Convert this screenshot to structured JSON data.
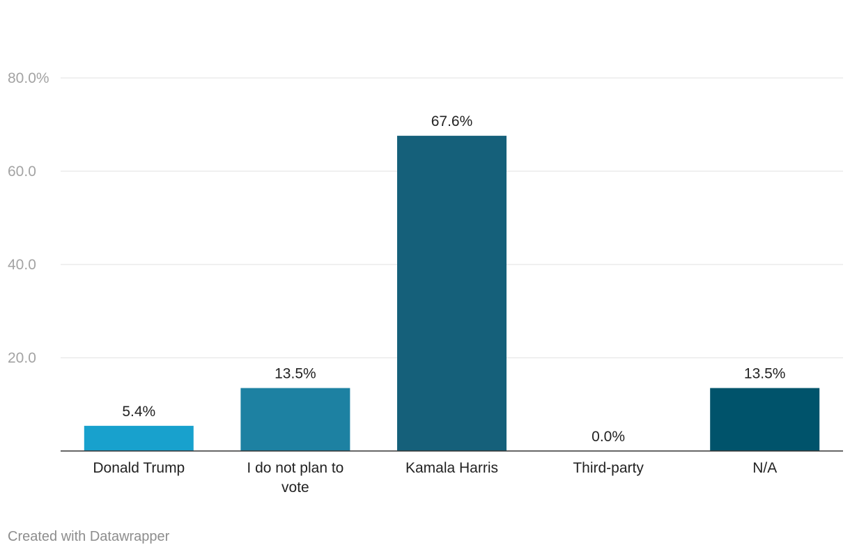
{
  "chart_data": {
    "type": "bar",
    "categories": [
      "Donald Trump",
      "I do not plan to vote",
      "Kamala Harris",
      "Third-party",
      "N/A"
    ],
    "category_lines": [
      [
        "Donald Trump"
      ],
      [
        "I do not plan to",
        "vote"
      ],
      [
        "Kamala Harris"
      ],
      [
        "Third-party"
      ],
      [
        "N/A"
      ]
    ],
    "values": [
      5.4,
      13.5,
      67.6,
      0.0,
      13.5
    ],
    "value_labels": [
      "5.4%",
      "13.5%",
      "67.6%",
      "0.0%",
      "13.5%"
    ],
    "bar_colors": [
      "#18a1cd",
      "#1d81a2",
      "#15607a",
      "#15607a",
      "#00536b"
    ],
    "ylim": [
      0,
      80
    ],
    "yticks": [
      20,
      40,
      60,
      80
    ],
    "ytick_labels": [
      "20.0",
      "40.0",
      "60.0",
      "80.0%"
    ],
    "grid": true,
    "title": "",
    "xlabel": "",
    "ylabel": ""
  },
  "footer": {
    "credit": "Created with Datawrapper"
  },
  "colors": {
    "grid": "#e0e0e0",
    "axis": "#333333",
    "tick_text": "#a3a3a3",
    "label_text": "#222222"
  }
}
